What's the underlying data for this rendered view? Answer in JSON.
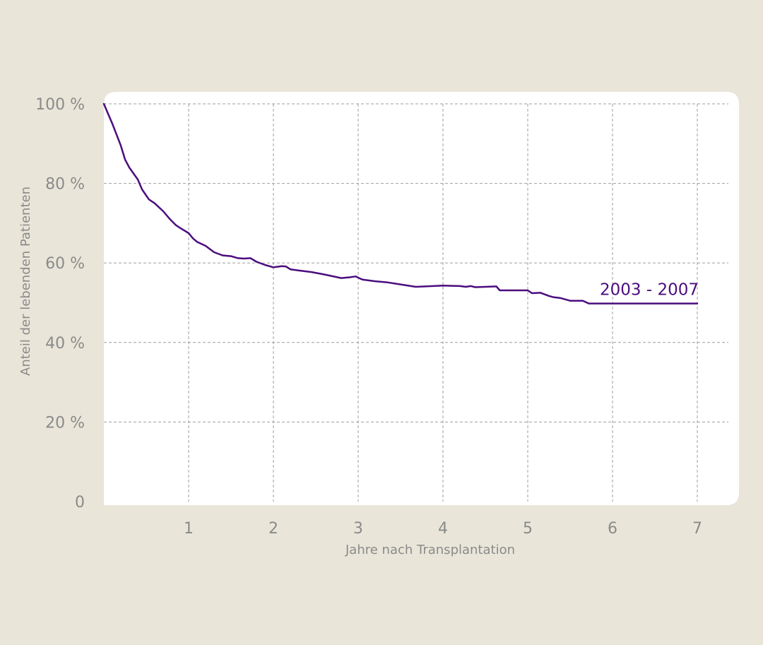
{
  "colors": {
    "background": "#e9e6d9",
    "plot_background": "#ffffff",
    "series": "#4b0d7e",
    "grid": "#9e9e9e",
    "text": "#8a8a8a"
  },
  "chart_data": {
    "type": "line",
    "title": "",
    "xlabel": "Jahre nach Transplantation",
    "ylabel": "Anteil der lebenden Patienten",
    "xlim": [
      0,
      7
    ],
    "ylim": [
      0,
      100
    ],
    "grid": true,
    "x_ticks": [
      {
        "value": 1,
        "label": "1"
      },
      {
        "value": 2,
        "label": "2"
      },
      {
        "value": 3,
        "label": "3"
      },
      {
        "value": 4,
        "label": "4"
      },
      {
        "value": 5,
        "label": "5"
      },
      {
        "value": 6,
        "label": "6"
      },
      {
        "value": 7,
        "label": "7"
      }
    ],
    "y_ticks": [
      {
        "value": 0,
        "label": "0"
      },
      {
        "value": 20,
        "label": "20 %"
      },
      {
        "value": 40,
        "label": "40 %"
      },
      {
        "value": 60,
        "label": "60 %"
      },
      {
        "value": 80,
        "label": "80 %"
      },
      {
        "value": 100,
        "label": "100 %"
      }
    ],
    "series": [
      {
        "name": "2003 - 2007",
        "color": "#4b0d7e",
        "x": [
          0,
          0.1,
          0.2,
          0.25,
          0.3,
          0.4,
          0.45,
          0.53,
          0.6,
          0.7,
          0.78,
          0.85,
          0.9,
          1.0,
          1.05,
          1.1,
          1.2,
          1.3,
          1.4,
          1.5,
          1.58,
          1.65,
          1.73,
          1.8,
          1.9,
          2.0,
          2.1,
          2.15,
          2.2,
          2.3,
          2.45,
          2.6,
          2.8,
          2.9,
          2.97,
          3.05,
          3.2,
          3.35,
          3.5,
          3.68,
          4.0,
          4.2,
          4.27,
          4.33,
          4.38,
          4.5,
          4.63,
          4.67,
          5.0,
          5.05,
          5.15,
          5.25,
          5.3,
          5.38,
          5.5,
          5.65,
          5.72,
          7.0
        ],
        "y": [
          100,
          95,
          89.5,
          86,
          84,
          81,
          78.5,
          76,
          75,
          73,
          71,
          69.5,
          68.8,
          67.5,
          66.2,
          65.3,
          64.3,
          62.7,
          61.9,
          61.7,
          61.2,
          61.1,
          61.2,
          60.3,
          59.5,
          58.9,
          59.2,
          59.1,
          58.4,
          58.1,
          57.7,
          57.1,
          56.2,
          56.4,
          56.6,
          55.8,
          55.4,
          55.1,
          54.6,
          54.0,
          54.3,
          54.2,
          54.0,
          54.2,
          53.9,
          54.0,
          54.1,
          53.1,
          53.1,
          52.4,
          52.5,
          51.7,
          51.4,
          51.2,
          50.5,
          50.5,
          49.8,
          49.8
        ]
      }
    ]
  }
}
